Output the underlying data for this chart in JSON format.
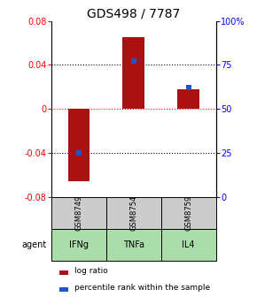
{
  "title": "GDS498 / 7787",
  "samples": [
    "GSM8749",
    "GSM8754",
    "GSM8759"
  ],
  "agents": [
    "IFNg",
    "TNFa",
    "IL4"
  ],
  "log_ratios": [
    -0.065,
    0.065,
    0.018
  ],
  "percentile_ranks": [
    0.25,
    0.77,
    0.62
  ],
  "ylim_left": [
    -0.08,
    0.08
  ],
  "bar_color": "#aa1111",
  "blue_color": "#2255cc",
  "sample_box_color": "#cccccc",
  "agent_box_color": "#aaddaa",
  "title_fontsize": 10,
  "tick_fontsize": 7,
  "bar_width": 0.4,
  "left_yticks": [
    -0.08,
    -0.04,
    0,
    0.04,
    0.08
  ],
  "right_yticks": [
    0,
    0.25,
    0.5,
    0.75,
    1.0
  ],
  "right_yticklabels": [
    "0",
    "25",
    "50",
    "75",
    "100%"
  ],
  "dotted_lines_black": [
    -0.04,
    0.04
  ],
  "dotted_line_red": 0.0
}
